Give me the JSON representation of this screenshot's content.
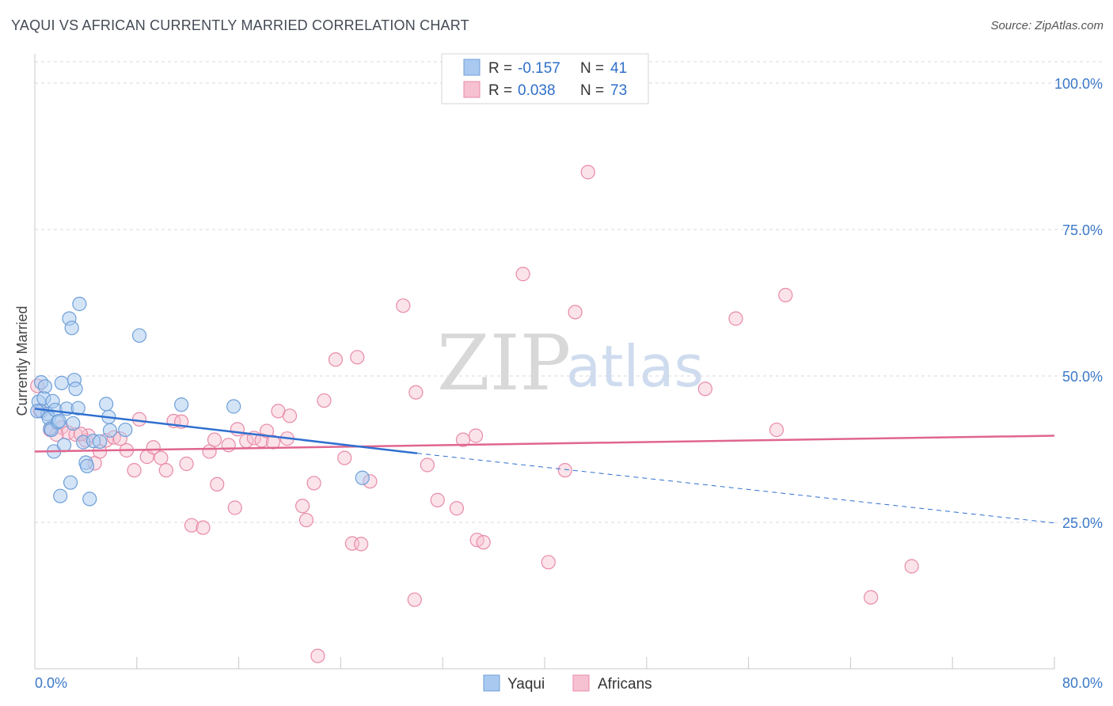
{
  "title": "YAQUI VS AFRICAN CURRENTLY MARRIED CORRELATION CHART",
  "source": "Source: ZipAtlas.com",
  "watermark": {
    "zip": "ZIP",
    "atlas": "atlas"
  },
  "colors": {
    "yaqui_fill": "#a9c9f0",
    "yaqui_stroke": "#6e9fd8",
    "yaqui_line": "#2f6fd0",
    "africans_fill": "#f6c1d1",
    "africans_stroke": "#e88aa7",
    "africans_line": "#e0668f",
    "grid": "#d9d9d9",
    "tick_label": "#3b78c9"
  },
  "legend": {
    "rows": [
      {
        "r_label": "R =",
        "r_value": "-0.157",
        "n_label": "N =",
        "n_value": "41"
      },
      {
        "r_label": "R =",
        "r_value": "0.038",
        "n_label": "N =",
        "n_value": "73"
      }
    ]
  },
  "bottom_legend": [
    "Yaqui",
    "Africans"
  ],
  "chart_data": {
    "type": "scatter",
    "title": "YAQUI VS AFRICAN CURRENTLY MARRIED CORRELATION CHART",
    "xlabel": "",
    "ylabel": "Currently Married",
    "xlim": [
      0,
      80
    ],
    "ylim": [
      0,
      105
    ],
    "x_tick_labels": [
      "0.0%",
      "80.0%"
    ],
    "y_tick_labels": [
      "25.0%",
      "50.0%",
      "75.0%",
      "100.0%"
    ],
    "y_ticks": [
      25,
      50,
      75,
      100
    ],
    "grid": true,
    "legend_position": "top-center",
    "series": [
      {
        "name": "Yaqui",
        "r": -0.157,
        "n": 41,
        "trend": {
          "x": [
            0,
            30
          ],
          "y": [
            44.4,
            36.8
          ],
          "dashed_to": [
            80,
            24.9
          ]
        },
        "points": [
          [
            0.3,
            45.6
          ],
          [
            0.5,
            44.0
          ],
          [
            0.5,
            48.9
          ],
          [
            0.7,
            46.2
          ],
          [
            0.8,
            48.2
          ],
          [
            1.0,
            43.5
          ],
          [
            1.1,
            42.8
          ],
          [
            1.2,
            41.0
          ],
          [
            1.3,
            40.8
          ],
          [
            1.4,
            45.7
          ],
          [
            1.5,
            37.1
          ],
          [
            1.6,
            44.2
          ],
          [
            1.8,
            42.1
          ],
          [
            1.9,
            42.3
          ],
          [
            2.0,
            29.5
          ],
          [
            2.1,
            48.8
          ],
          [
            2.3,
            38.2
          ],
          [
            2.5,
            44.4
          ],
          [
            2.7,
            59.8
          ],
          [
            2.8,
            31.8
          ],
          [
            2.9,
            58.2
          ],
          [
            3.0,
            41.9
          ],
          [
            3.1,
            49.3
          ],
          [
            3.2,
            47.8
          ],
          [
            3.4,
            44.5
          ],
          [
            3.5,
            62.3
          ],
          [
            3.8,
            38.7
          ],
          [
            4.0,
            35.2
          ],
          [
            4.1,
            34.6
          ],
          [
            4.3,
            29.0
          ],
          [
            4.6,
            38.9
          ],
          [
            5.1,
            38.8
          ],
          [
            5.6,
            45.2
          ],
          [
            5.8,
            43.0
          ],
          [
            5.9,
            40.7
          ],
          [
            7.1,
            40.8
          ],
          [
            8.2,
            56.9
          ],
          [
            11.5,
            45.1
          ],
          [
            15.6,
            44.8
          ],
          [
            25.7,
            32.6
          ],
          [
            0.2,
            44.0
          ]
        ]
      },
      {
        "name": "Africans",
        "r": 0.038,
        "n": 73,
        "trend": {
          "x": [
            0,
            80
          ],
          "y": [
            37.1,
            39.8
          ]
        },
        "points": [
          [
            0.2,
            48.3
          ],
          [
            0.4,
            44.1
          ],
          [
            1.2,
            40.8
          ],
          [
            2.1,
            41.2
          ],
          [
            2.6,
            40.3
          ],
          [
            3.2,
            40.0
          ],
          [
            4.0,
            39.0
          ],
          [
            4.2,
            39.8
          ],
          [
            4.7,
            35.1
          ],
          [
            5.1,
            37.1
          ],
          [
            5.6,
            39.0
          ],
          [
            6.2,
            39.5
          ],
          [
            6.7,
            39.3
          ],
          [
            7.2,
            37.3
          ],
          [
            7.8,
            33.9
          ],
          [
            8.2,
            42.6
          ],
          [
            8.8,
            36.2
          ],
          [
            9.3,
            37.8
          ],
          [
            9.9,
            36.0
          ],
          [
            10.3,
            33.9
          ],
          [
            10.9,
            42.3
          ],
          [
            11.5,
            42.2
          ],
          [
            11.9,
            35.0
          ],
          [
            12.3,
            24.5
          ],
          [
            13.2,
            24.1
          ],
          [
            13.7,
            37.1
          ],
          [
            14.1,
            39.1
          ],
          [
            14.3,
            31.5
          ],
          [
            15.2,
            38.2
          ],
          [
            15.7,
            27.5
          ],
          [
            15.9,
            40.9
          ],
          [
            16.6,
            38.9
          ],
          [
            17.2,
            39.4
          ],
          [
            17.8,
            39.0
          ],
          [
            18.2,
            40.6
          ],
          [
            18.7,
            38.7
          ],
          [
            19.1,
            44.0
          ],
          [
            19.8,
            39.3
          ],
          [
            20.0,
            43.2
          ],
          [
            21.0,
            27.8
          ],
          [
            21.3,
            25.4
          ],
          [
            21.9,
            31.7
          ],
          [
            22.2,
            2.2
          ],
          [
            22.7,
            45.8
          ],
          [
            23.6,
            52.8
          ],
          [
            24.3,
            36.0
          ],
          [
            24.9,
            21.4
          ],
          [
            25.3,
            53.2
          ],
          [
            25.6,
            21.3
          ],
          [
            26.3,
            32.0
          ],
          [
            28.9,
            62.0
          ],
          [
            29.8,
            11.8
          ],
          [
            29.9,
            47.2
          ],
          [
            30.8,
            34.8
          ],
          [
            31.6,
            28.8
          ],
          [
            33.1,
            27.4
          ],
          [
            33.6,
            39.1
          ],
          [
            34.6,
            39.8
          ],
          [
            34.7,
            22.0
          ],
          [
            35.2,
            21.6
          ],
          [
            38.3,
            67.4
          ],
          [
            40.3,
            18.2
          ],
          [
            41.6,
            33.9
          ],
          [
            42.4,
            60.9
          ],
          [
            43.4,
            84.8
          ],
          [
            52.6,
            47.8
          ],
          [
            55.0,
            59.8
          ],
          [
            58.2,
            40.8
          ],
          [
            58.9,
            63.8
          ],
          [
            65.6,
            12.2
          ],
          [
            68.8,
            17.5
          ],
          [
            1.7,
            40.0
          ],
          [
            3.6,
            40.1
          ]
        ]
      }
    ]
  }
}
